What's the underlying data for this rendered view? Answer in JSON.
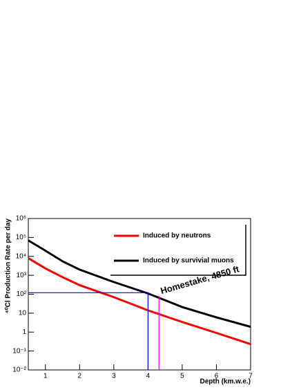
{
  "chart_data": {
    "type": "line",
    "xlabel": "Depth (km.w.e.)",
    "ylabel": "⁴⁰Cl Production Rate per day",
    "log_y": true,
    "xlim": [
      0.5,
      7
    ],
    "xticks": [
      1,
      2,
      3,
      4,
      5,
      6,
      7
    ],
    "ylim": [
      0.01,
      1000000
    ],
    "yticks": [
      {
        "value": 0.01,
        "label": "10⁻²"
      },
      {
        "value": 0.1,
        "label": "10⁻¹"
      },
      1,
      10,
      {
        "value": 100,
        "label": "10²"
      },
      {
        "value": 1000,
        "label": "10³"
      },
      {
        "value": 10000,
        "label": "10⁴"
      },
      {
        "value": 100000,
        "label": "10⁵"
      },
      {
        "value": 1000000,
        "label": "10⁶"
      }
    ],
    "x": [
      0.5,
      1,
      1.5,
      2,
      3,
      4,
      5,
      6,
      7
    ],
    "series": [
      {
        "name": "Induced by neutrons",
        "color": "#ff0000",
        "values": [
          8000,
          2300,
          800,
          300,
          70,
          14,
          3.4,
          0.9,
          0.23
        ]
      },
      {
        "name": "Induced by survivial muons",
        "color": "#000000",
        "values": [
          70000,
          20000,
          5500,
          2000,
          440,
          110,
          21,
          6,
          1.9
        ]
      }
    ],
    "reference_lines": [
      {
        "color": "#0000ff",
        "x": 4,
        "y": 120
      },
      {
        "color": "#ff00ff",
        "x": 4.32,
        "y": 80
      }
    ],
    "annotation": "Homestake, 4850 ft"
  }
}
